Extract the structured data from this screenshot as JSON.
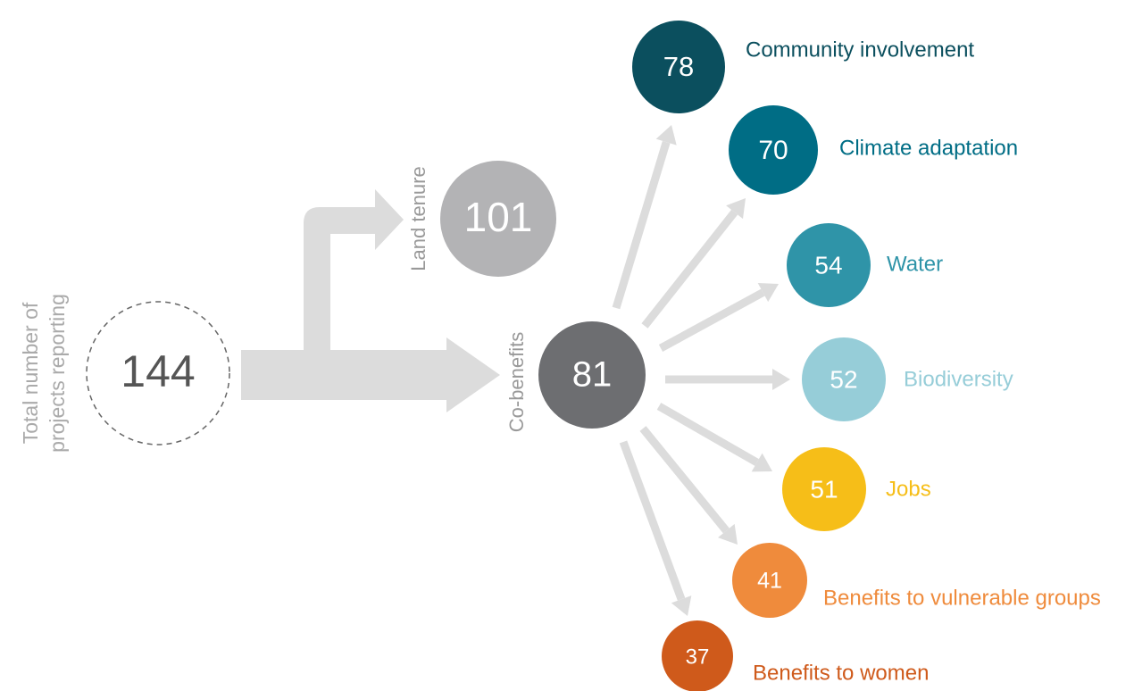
{
  "root": {
    "label_lines": [
      "Total number of",
      "projects reporting"
    ],
    "value": 144
  },
  "branches": [
    {
      "label": "Land tenure",
      "value": 101,
      "color": "#b3b3b5"
    },
    {
      "label": "Co-benefits",
      "value": 81,
      "color": "#6d6e71"
    }
  ],
  "co_benefits": [
    {
      "label": "Community involvement",
      "value": 78,
      "color": "#0b4f5e"
    },
    {
      "label": "Climate adaptation",
      "value": 70,
      "color": "#006d85"
    },
    {
      "label": "Water",
      "value": 54,
      "color": "#2f94a8"
    },
    {
      "label": "Biodiversity",
      "value": 52,
      "color": "#96cdd8"
    },
    {
      "label": "Jobs",
      "value": 51,
      "color": "#f6be18"
    },
    {
      "label": "Benefits to vulnerable groups",
      "value": 41,
      "color": "#ef8b3c"
    },
    {
      "label": "Benefits to women",
      "value": 37,
      "color": "#cf5a1b"
    }
  ]
}
